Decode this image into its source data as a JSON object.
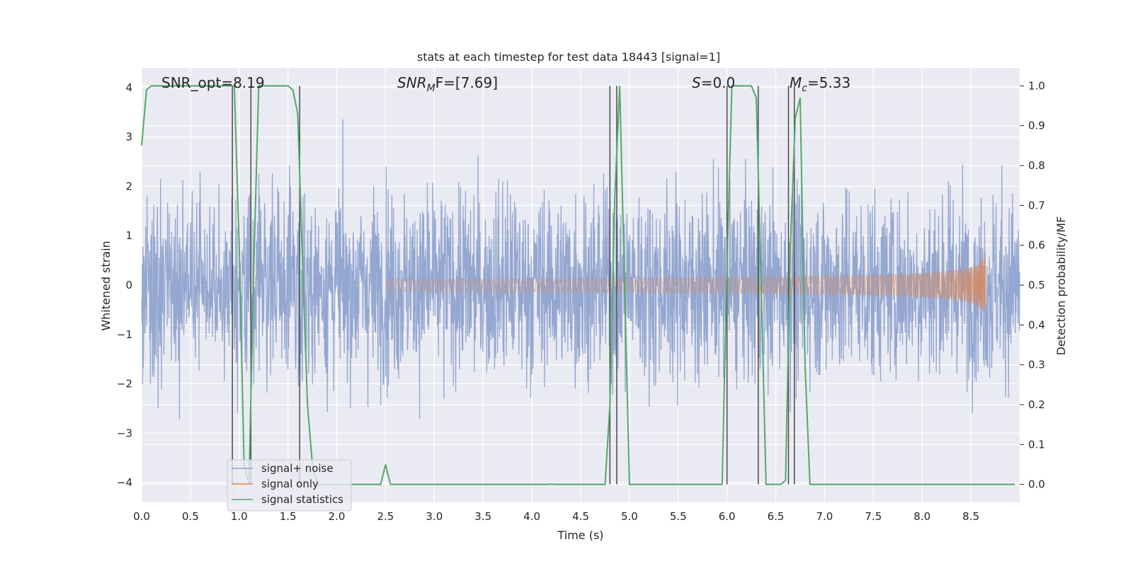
{
  "chart_data": {
    "type": "line",
    "title": "stats at each timestep for test data 18443 [signal=1]",
    "xlabel": "Time (s)",
    "ylabel_left": "Whitened strain",
    "ylabel_right": "Detection probability/MF",
    "xlim": [
      0.0,
      9.0
    ],
    "ylim_left": [
      -4.4,
      4.4
    ],
    "ylim_right": [
      -0.045,
      1.045
    ],
    "xticks": [
      0.0,
      0.5,
      1.0,
      1.5,
      2.0,
      2.5,
      3.0,
      3.5,
      4.0,
      4.5,
      5.0,
      5.5,
      6.0,
      6.5,
      7.0,
      7.5,
      8.0,
      8.5
    ],
    "xtick_labels": [
      "0.0",
      "0.5",
      "1.0",
      "1.5",
      "2.0",
      "2.5",
      "3.0",
      "3.5",
      "4.0",
      "4.5",
      "5.0",
      "5.5",
      "6.0",
      "6.5",
      "7.0",
      "7.5",
      "8.0",
      "8.5"
    ],
    "yticks_left": [
      -4,
      -3,
      -2,
      -1,
      0,
      1,
      2,
      3,
      4
    ],
    "ytick_labels_left": [
      "−4",
      "−3",
      "−2",
      "−1",
      "0",
      "1",
      "2",
      "3",
      "4"
    ],
    "yticks_right": [
      0.0,
      0.1,
      0.2,
      0.3,
      0.4,
      0.5,
      0.6,
      0.7,
      0.8,
      0.9,
      1.0
    ],
    "ytick_labels_right": [
      "0.0",
      "0.1",
      "0.2",
      "0.3",
      "0.4",
      "0.5",
      "0.6",
      "0.7",
      "0.8",
      "0.9",
      "1.0"
    ],
    "grid": true,
    "legend_position": "lower-left",
    "annotations": {
      "snr_opt": "SNR_opt=8.19",
      "snr_mf_main": "SNR",
      "snr_mf_sub": "M",
      "snr_mf_rest": "F=[7.69]",
      "s_main": "S",
      "s_rest": "=0.0",
      "mc_main": "M",
      "mc_sub": "c",
      "mc_rest": "=5.33"
    },
    "series": [
      {
        "name": "signal+ noise",
        "color": "#8fa3cf",
        "description_values": "whitened strain noise spanning roughly -3.9 to 3.4 over 0 to 9 s",
        "x_range": [
          0.0,
          9.0
        ],
        "typical_abs_range": [
          1.5,
          2.8
        ],
        "max": 3.4,
        "min": -3.9
      },
      {
        "name": "signal only",
        "color": "#dd8452",
        "chirp_start": 2.5,
        "chirp_end": 8.65,
        "amplitude_at_8_0": 0.25,
        "peak_amplitude": 0.95
      },
      {
        "name": "signal statistics",
        "color": "#55a868",
        "x": [
          0.0,
          0.05,
          0.1,
          0.15,
          0.2,
          0.25,
          0.3,
          0.35,
          0.4,
          0.45,
          0.5,
          0.55,
          0.6,
          0.65,
          0.7,
          0.75,
          0.8,
          0.85,
          0.9,
          0.95,
          1.0,
          1.05,
          1.1,
          1.15,
          1.2,
          1.25,
          1.3,
          1.35,
          1.4,
          1.45,
          1.5,
          1.55,
          1.6,
          1.65,
          1.7,
          1.75,
          1.8,
          1.85,
          1.9,
          1.95,
          2.0,
          2.05,
          2.1,
          2.15,
          2.2,
          2.25,
          2.3,
          2.35,
          2.4,
          2.45,
          2.5,
          2.55,
          2.6,
          2.65,
          2.7,
          2.75,
          2.8,
          2.85,
          2.9,
          2.95,
          3.0,
          3.05,
          3.1,
          3.15,
          3.2,
          3.25,
          3.3,
          3.35,
          3.4,
          3.45,
          3.5,
          3.55,
          3.6,
          3.65,
          3.7,
          3.75,
          3.8,
          3.85,
          3.9,
          3.95,
          4.0,
          4.05,
          4.1,
          4.15,
          4.2,
          4.25,
          4.3,
          4.35,
          4.4,
          4.45,
          4.5,
          4.55,
          4.6,
          4.65,
          4.7,
          4.75,
          4.8,
          4.85,
          4.9,
          4.95,
          5.0,
          5.05,
          5.1,
          5.15,
          5.2,
          5.25,
          5.3,
          5.35,
          5.4,
          5.45,
          5.5,
          5.55,
          5.6,
          5.65,
          5.7,
          5.75,
          5.8,
          5.85,
          5.9,
          5.95,
          6.0,
          6.05,
          6.1,
          6.15,
          6.2,
          6.25,
          6.3,
          6.35,
          6.4,
          6.45,
          6.5,
          6.55,
          6.6,
          6.65,
          6.7,
          6.75,
          6.8,
          6.85,
          6.9,
          6.95,
          7.0,
          7.05,
          7.1,
          7.15,
          7.2,
          7.25,
          7.3,
          7.35,
          7.4,
          7.45,
          7.5,
          7.55,
          7.6,
          7.65,
          7.7,
          7.75,
          7.8,
          7.85,
          7.9,
          7.95,
          8.0,
          8.05,
          8.1,
          8.15,
          8.2,
          8.25,
          8.3,
          8.35,
          8.4,
          8.45,
          8.5,
          8.55,
          8.6,
          8.65,
          8.7,
          8.75,
          8.8,
          8.85,
          8.9,
          8.95
        ],
        "y": [
          0.85,
          0.99,
          1.0,
          1.0,
          1.0,
          1.0,
          1.0,
          1.0,
          1.0,
          1.0,
          1.0,
          1.0,
          1.0,
          1.0,
          1.0,
          1.0,
          1.0,
          1.0,
          1.0,
          1.0,
          0.6,
          0.05,
          0.0,
          0.55,
          1.0,
          1.0,
          1.0,
          1.0,
          1.0,
          1.0,
          1.0,
          0.99,
          0.93,
          0.55,
          0.2,
          0.05,
          0.0,
          0.0,
          0.0,
          0.0,
          0.0,
          0.0,
          0.0,
          0.0,
          0.0,
          0.0,
          0.0,
          0.0,
          0.0,
          0.0,
          0.05,
          0.0,
          0.0,
          0.0,
          0.0,
          0.0,
          0.0,
          0.0,
          0.0,
          0.0,
          0.0,
          0.0,
          0.0,
          0.0,
          0.0,
          0.0,
          0.0,
          0.0,
          0.0,
          0.0,
          0.0,
          0.0,
          0.0,
          0.0,
          0.0,
          0.0,
          0.0,
          0.0,
          0.0,
          0.0,
          0.0,
          0.0,
          0.0,
          0.0,
          0.001,
          0.0,
          0.0,
          0.0,
          0.0,
          0.0,
          0.0,
          0.0,
          0.0,
          0.0,
          0.0,
          0.0,
          0.2,
          0.72,
          1.0,
          0.5,
          0.0,
          0.0,
          0.0,
          0.0,
          0.0,
          0.0,
          0.0,
          0.0,
          0.0,
          0.0,
          0.0,
          0.0,
          0.0,
          0.0,
          0.0,
          0.0,
          0.0,
          0.0,
          0.0,
          0.0,
          0.55,
          1.0,
          1.0,
          1.0,
          1.0,
          1.0,
          0.97,
          0.5,
          0.0,
          0.0,
          0.0,
          0.0,
          0.01,
          0.6,
          0.92,
          0.97,
          0.3,
          0.0,
          0.0,
          0.0,
          0.0,
          0.0,
          0.0,
          0.0,
          0.0,
          0.0,
          0.0,
          0.0,
          0.0,
          0.0,
          0.0,
          0.0,
          0.0,
          0.0,
          0.0,
          0.0,
          0.0,
          0.0,
          0.0,
          0.0,
          0.0,
          0.0,
          0.0,
          0.0,
          0.0,
          0.0,
          0.0,
          0.0,
          0.0,
          0.0,
          0.0,
          0.0,
          0.0,
          0.0,
          0.0,
          0.0,
          0.0,
          0.0,
          0.0,
          0.0
        ]
      }
    ],
    "vertical_lines": {
      "color": "#4a4a4a",
      "x": [
        0.93,
        1.12,
        1.62,
        4.8,
        4.87,
        6.0,
        6.32,
        6.63,
        6.69
      ]
    }
  }
}
